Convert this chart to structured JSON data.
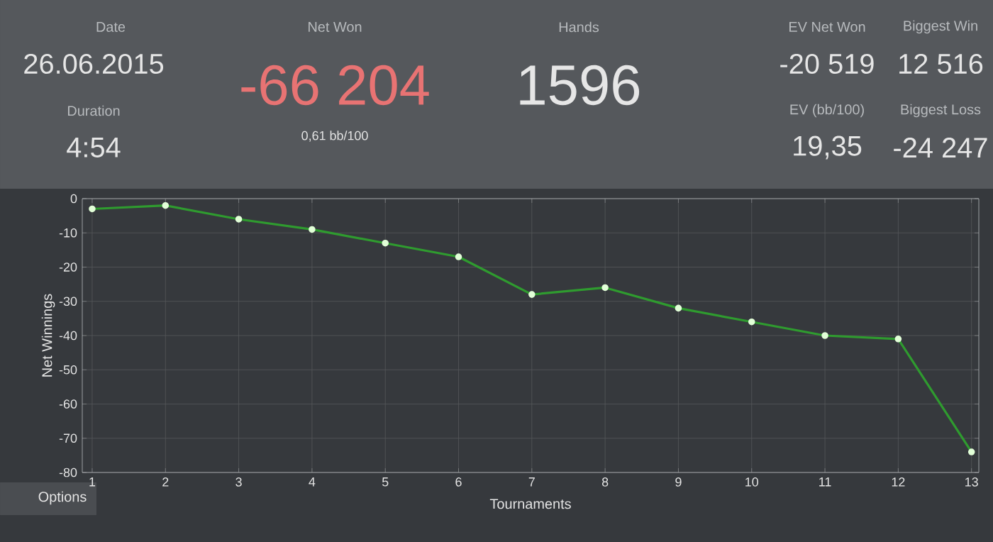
{
  "chart_data": {
    "type": "line",
    "xlabel": "Tournaments",
    "ylabel": "Net Winnings",
    "categories": [
      "1",
      "2",
      "3",
      "4",
      "5",
      "6",
      "7",
      "8",
      "9",
      "10",
      "11",
      "12",
      "13"
    ],
    "series": [
      {
        "color": "#2f9b2f",
        "values": [
          -3,
          -2,
          -6,
          -9,
          -13,
          -17,
          -28,
          -26,
          -32,
          -36,
          -40,
          -41,
          -74
        ]
      }
    ],
    "ylim": [
      -80,
      0
    ],
    "yticks": [
      -80,
      -70,
      -60,
      -50,
      -40,
      -30,
      -20,
      -10,
      0
    ],
    "grid": true,
    "marker": "circle",
    "line_style": "solid",
    "annotations": [
      "Date",
      "26.06.2015",
      "Duration",
      "4:54",
      "Net Won",
      "-66 204",
      "0,61 bb/100",
      "Hands",
      "1596",
      "EV Net Won",
      "-20 519",
      "EV (bb/100)",
      "19,35",
      "Biggest Win",
      "12 516",
      "Biggest Loss",
      "-24 247",
      "Options"
    ]
  }
}
